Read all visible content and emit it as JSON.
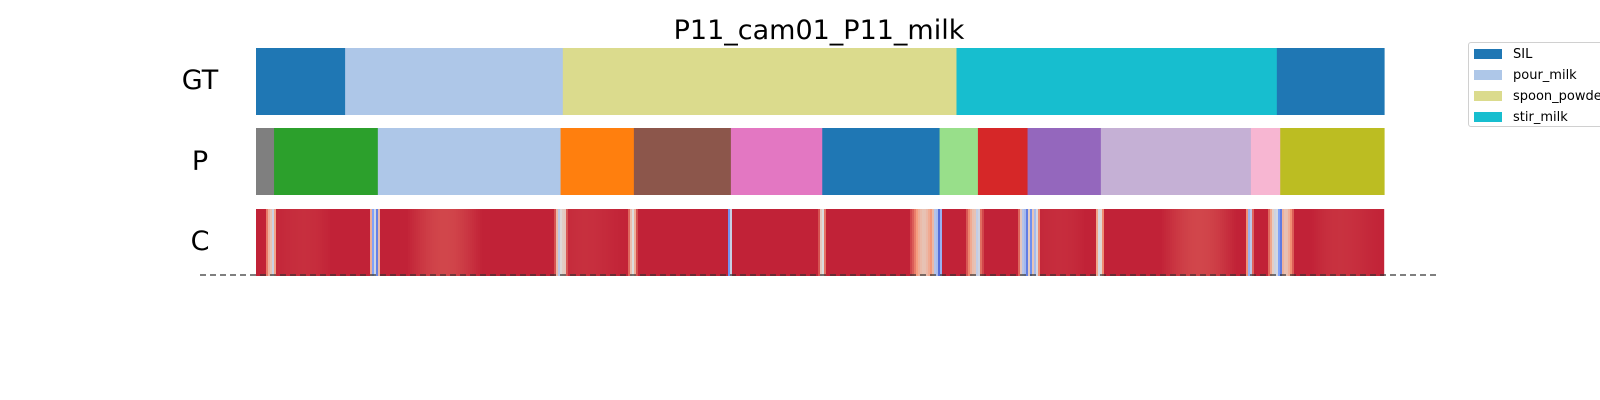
{
  "chart_data": {
    "type": "segmentation_bars",
    "title": "P11_cam01_P11_milk",
    "x_range": [
      0,
      1
    ],
    "rows": [
      {
        "label": "GT",
        "segments": [
          {
            "start": 0.0,
            "end": 0.079,
            "action": "SIL",
            "color": "#1f77b4"
          },
          {
            "start": 0.079,
            "end": 0.272,
            "action": "pour_milk",
            "color": "#aec7e8"
          },
          {
            "start": 0.272,
            "end": 0.621,
            "action": "spoon_powder",
            "color": "#dbdb8d"
          },
          {
            "start": 0.621,
            "end": 0.905,
            "action": "stir_milk",
            "color": "#17becf"
          },
          {
            "start": 0.905,
            "end": 1.0,
            "action": "SIL",
            "color": "#1f77b4"
          }
        ]
      },
      {
        "label": "P",
        "segments": [
          {
            "start": 0.0,
            "end": 0.016,
            "color": "#7f7f7f"
          },
          {
            "start": 0.016,
            "end": 0.108,
            "color": "#2ca02c"
          },
          {
            "start": 0.108,
            "end": 0.27,
            "color": "#aec7e8"
          },
          {
            "start": 0.27,
            "end": 0.335,
            "color": "#ff7f0e"
          },
          {
            "start": 0.335,
            "end": 0.421,
            "color": "#8c564b"
          },
          {
            "start": 0.421,
            "end": 0.502,
            "color": "#e377c2"
          },
          {
            "start": 0.502,
            "end": 0.606,
            "color": "#1f77b4"
          },
          {
            "start": 0.606,
            "end": 0.64,
            "color": "#98df8a"
          },
          {
            "start": 0.64,
            "end": 0.684,
            "color": "#d62728"
          },
          {
            "start": 0.684,
            "end": 0.749,
            "color": "#9467bd"
          },
          {
            "start": 0.749,
            "end": 0.882,
            "color": "#c5b0d5"
          },
          {
            "start": 0.882,
            "end": 0.908,
            "color": "#f7b6d2"
          },
          {
            "start": 0.908,
            "end": 1.0,
            "color": "#bcbd22"
          }
        ]
      },
      {
        "label": "C",
        "colormap": "coolwarm",
        "base_value": 0.95,
        "dips": [
          {
            "pos": 0.013,
            "min": 0.6,
            "width": 0.0025
          },
          {
            "pos": 0.015,
            "min": 0.45,
            "width": 0.0015
          },
          {
            "pos": 0.104,
            "min": 0.25,
            "width": 0.0015
          },
          {
            "pos": 0.107,
            "min": 0.15,
            "width": 0.0015
          },
          {
            "pos": 0.269,
            "min": 0.4,
            "width": 0.002
          },
          {
            "pos": 0.273,
            "min": 0.5,
            "width": 0.0015
          },
          {
            "pos": 0.334,
            "min": 0.5,
            "width": 0.002
          },
          {
            "pos": 0.42,
            "min": 0.02,
            "width": 0.001
          },
          {
            "pos": 0.502,
            "min": 0.45,
            "width": 0.0015
          },
          {
            "pos": 0.592,
            "min": 0.6,
            "width": 0.006
          },
          {
            "pos": 0.603,
            "min": 0.35,
            "width": 0.0025
          },
          {
            "pos": 0.606,
            "min": 0.05,
            "width": 0.0015
          },
          {
            "pos": 0.637,
            "min": 0.6,
            "width": 0.004
          },
          {
            "pos": 0.64,
            "min": 0.35,
            "width": 0.0015
          },
          {
            "pos": 0.68,
            "min": 0.4,
            "width": 0.002
          },
          {
            "pos": 0.683,
            "min": 0.1,
            "width": 0.0015
          },
          {
            "pos": 0.687,
            "min": 0.2,
            "width": 0.0015
          },
          {
            "pos": 0.691,
            "min": 0.35,
            "width": 0.002
          },
          {
            "pos": 0.748,
            "min": 0.45,
            "width": 0.002
          },
          {
            "pos": 0.881,
            "min": 0.25,
            "width": 0.0015
          },
          {
            "pos": 0.904,
            "min": 0.45,
            "width": 0.0035
          },
          {
            "pos": 0.908,
            "min": 0.05,
            "width": 0.0015
          },
          {
            "pos": 0.913,
            "min": 0.6,
            "width": 0.004
          }
        ]
      }
    ],
    "legend": {
      "position": "top-right",
      "entries": [
        {
          "label": "SIL",
          "color": "#1f77b4"
        },
        {
          "label": "pour_milk",
          "color": "#aec7e8"
        },
        {
          "label": "spoon_powder",
          "color": "#dbdb8d"
        },
        {
          "label": "stir_milk",
          "color": "#17becf"
        }
      ]
    },
    "baseline": {
      "style": "dashed",
      "color": "#333333"
    }
  }
}
